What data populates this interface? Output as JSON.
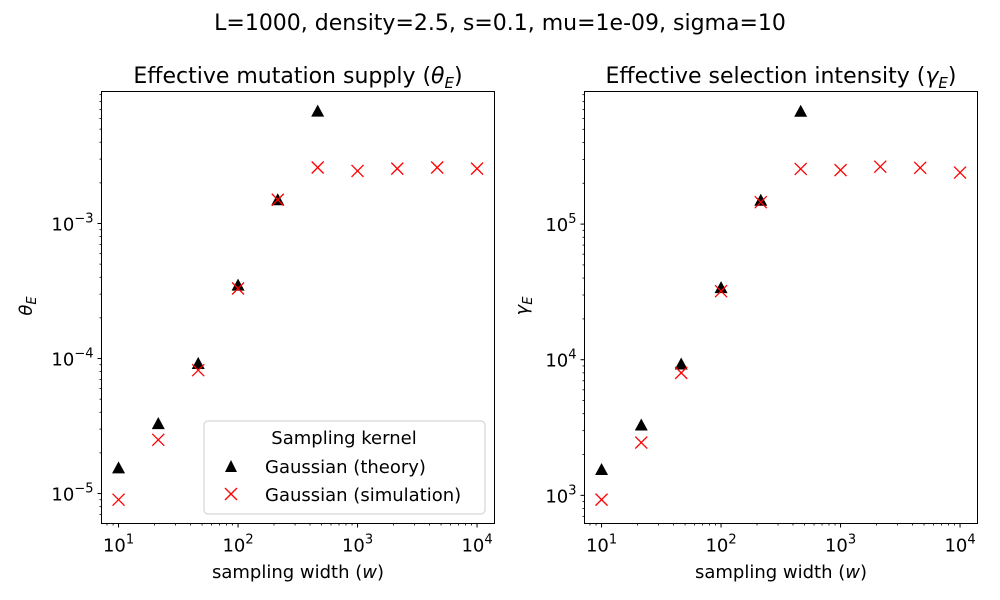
{
  "figure": {
    "suptitle": "L=1000, density=2.5, s=0.1, mu=1e-09, sigma=10"
  },
  "chart_data": [
    {
      "type": "scatter",
      "title_text": "Effective mutation supply (",
      "title_sym": "θ",
      "title_sub": "E",
      "title_close": ")",
      "ylabel_sym": "θ",
      "ylabel_sub": "E",
      "xlabel_text": "sampling width (",
      "xlabel_sym": "w",
      "xlabel_close": ")",
      "xscale": "log",
      "yscale": "log",
      "xlim": [
        7.2,
        14000
      ],
      "ylim": [
        6e-06,
        0.0095
      ],
      "xticks": [
        {
          "base": "10",
          "exp": "1",
          "value": 10
        },
        {
          "base": "10",
          "exp": "2",
          "value": 100
        },
        {
          "base": "10",
          "exp": "3",
          "value": 1000
        },
        {
          "base": "10",
          "exp": "4",
          "value": 10000
        }
      ],
      "yticks": [
        {
          "base": "10",
          "exp": "−5",
          "value": 1e-05
        },
        {
          "base": "10",
          "exp": "−4",
          "value": 0.0001
        },
        {
          "base": "10",
          "exp": "−3",
          "value": 0.001
        }
      ],
      "legend": {
        "title": "Sampling kernel",
        "position": "lower right",
        "entries": [
          "Gaussian (theory)",
          "Gaussian (simulation)"
        ]
      },
      "series": [
        {
          "name": "Gaussian (theory)",
          "marker": "triangle",
          "color": "#000000",
          "x": [
            10,
            21.5,
            46.4,
            100,
            215,
            464
          ],
          "y": [
            1.55e-05,
            3.3e-05,
            9.2e-05,
            0.00035,
            0.0015,
            0.0068
          ]
        },
        {
          "name": "Gaussian (simulation)",
          "marker": "x",
          "color": "#ff0000",
          "x": [
            10,
            21.5,
            46.4,
            100,
            215,
            464,
            1000,
            2150,
            4640,
            10000
          ],
          "y": [
            9e-06,
            2.5e-05,
            8.2e-05,
            0.00033,
            0.0015,
            0.0026,
            0.00245,
            0.00255,
            0.0026,
            0.00255
          ]
        }
      ]
    },
    {
      "type": "scatter",
      "title_text": "Effective selection intensity (",
      "title_sym": "γ",
      "title_sub": "E",
      "title_close": ")",
      "ylabel_sym": "γ",
      "ylabel_sub": "E",
      "xlabel_text": "sampling width (",
      "xlabel_sym": "w",
      "xlabel_close": ")",
      "xscale": "log",
      "yscale": "log",
      "xlim": [
        7.2,
        14000
      ],
      "ylim": [
        620,
        950000
      ],
      "xticks": [
        {
          "base": "10",
          "exp": "1",
          "value": 10
        },
        {
          "base": "10",
          "exp": "2",
          "value": 100
        },
        {
          "base": "10",
          "exp": "3",
          "value": 1000
        },
        {
          "base": "10",
          "exp": "4",
          "value": 10000
        }
      ],
      "yticks": [
        {
          "base": "10",
          "exp": "3",
          "value": 1000
        },
        {
          "base": "10",
          "exp": "4",
          "value": 10000
        },
        {
          "base": "10",
          "exp": "5",
          "value": 100000
        }
      ],
      "series": [
        {
          "name": "Gaussian (theory)",
          "marker": "triangle",
          "color": "#000000",
          "x": [
            10,
            21.5,
            46.4,
            100,
            215,
            464
          ],
          "y": [
            1550,
            3300,
            9300,
            34000,
            150000,
            680000
          ]
        },
        {
          "name": "Gaussian (simulation)",
          "marker": "x",
          "color": "#ff0000",
          "x": [
            10,
            21.5,
            46.4,
            100,
            215,
            464,
            1000,
            2150,
            4640,
            10000
          ],
          "y": [
            930,
            2450,
            8000,
            32000,
            145000,
            255000,
            250000,
            265000,
            260000,
            240000
          ]
        }
      ]
    }
  ]
}
